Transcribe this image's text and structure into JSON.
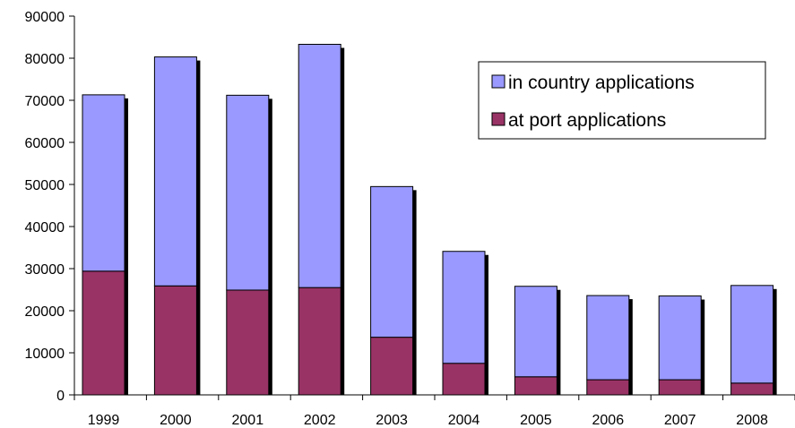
{
  "chart_data": {
    "type": "bar",
    "stacked": true,
    "categories": [
      "1999",
      "2000",
      "2001",
      "2002",
      "2003",
      "2004",
      "2005",
      "2006",
      "2007",
      "2008"
    ],
    "series": [
      {
        "name": "at port applications",
        "color": "#993366",
        "values": [
          29400,
          25900,
          24900,
          25500,
          13700,
          7500,
          4300,
          3600,
          3600,
          2800
        ]
      },
      {
        "name": "in country applications",
        "color": "#9999ff",
        "values": [
          41900,
          54400,
          46300,
          57800,
          35800,
          26600,
          21500,
          20000,
          19900,
          23200
        ]
      }
    ],
    "yticks": [
      "0",
      "10000",
      "20000",
      "30000",
      "40000",
      "50000",
      "60000",
      "70000",
      "80000",
      "90000"
    ],
    "ylim": [
      0,
      90000
    ],
    "legend": {
      "position": "top-right",
      "items": [
        "in country applications",
        "at port applications"
      ]
    },
    "grid": false,
    "shadow_color": "#000000",
    "axis_color": "#000000"
  }
}
